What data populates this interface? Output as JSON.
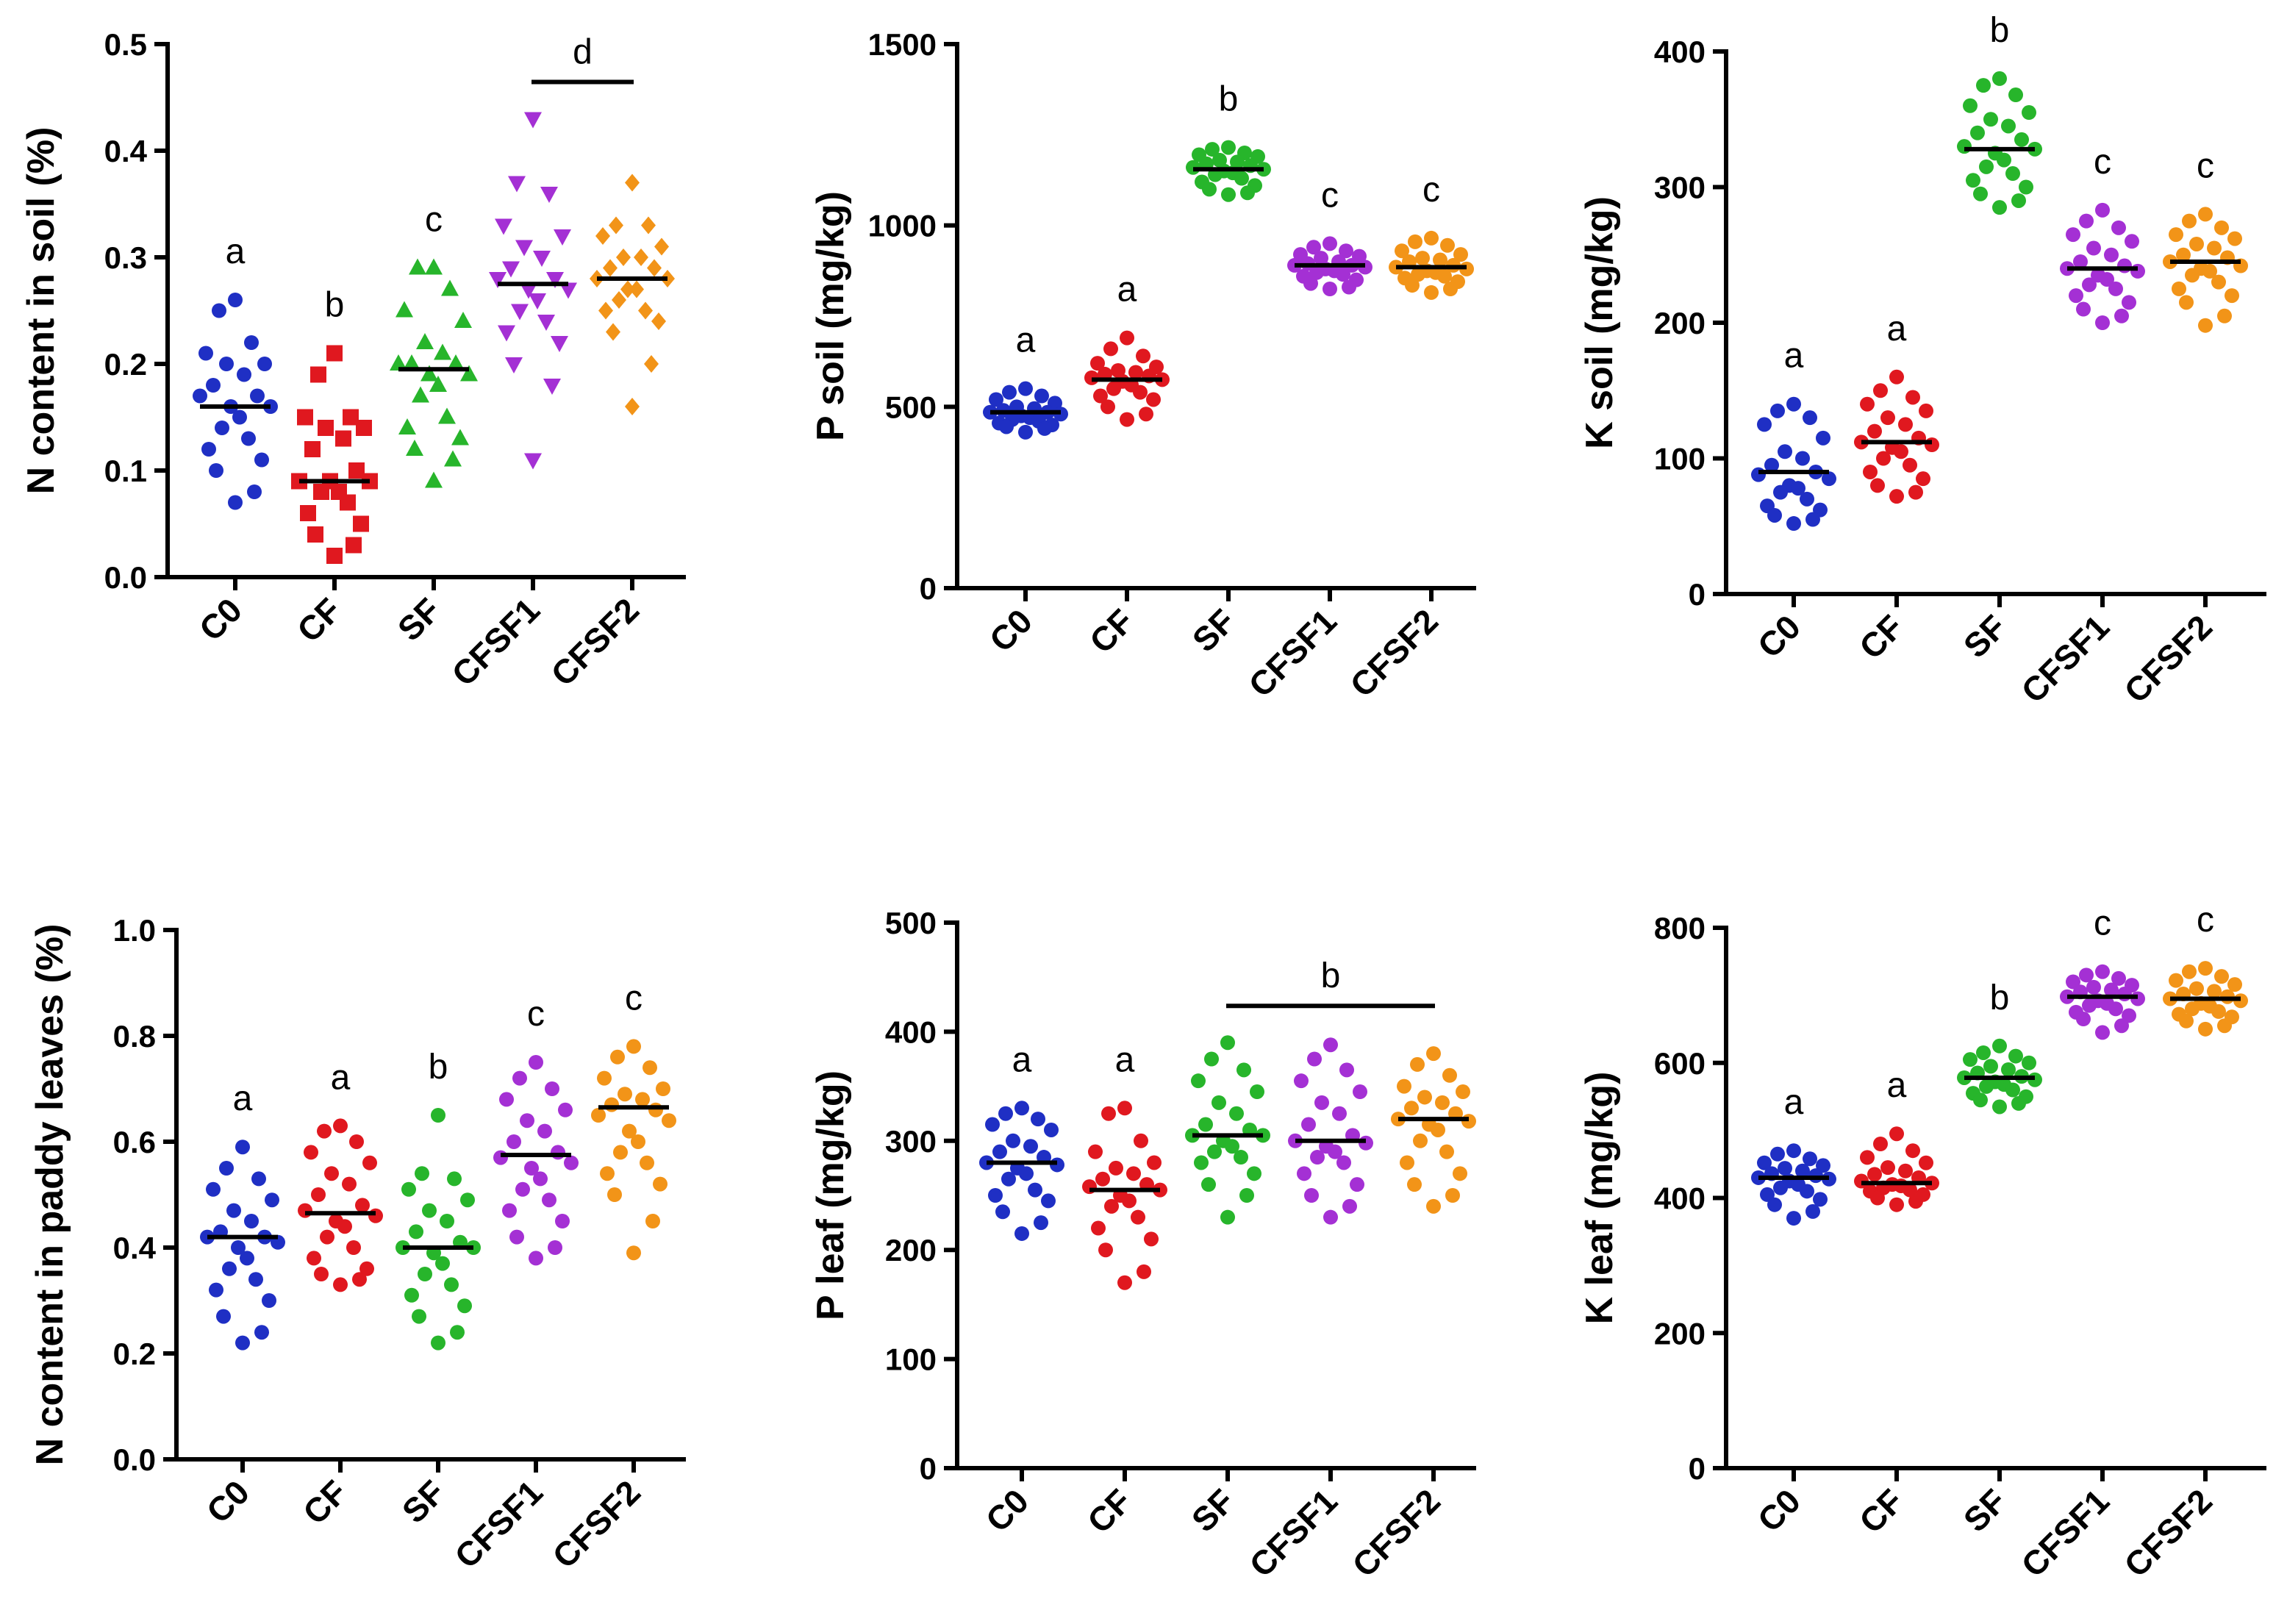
{
  "colors": {
    "C0": "#1f2fc4",
    "CF": "#e0181f",
    "SF": "#27b52b",
    "CFSF1": "#a430d4",
    "CFSF2": "#f29418"
  },
  "chart_data": [
    {
      "type": "scatter",
      "ylabel": "N content in soil (%)",
      "ylim": [
        0,
        0.5
      ],
      "yticks": [
        "0.0",
        "0.1",
        "0.2",
        "0.3",
        "0.4",
        "0.5"
      ],
      "categories": [
        "C0",
        "CF",
        "SF",
        "CFSF1",
        "CFSF2"
      ],
      "markers": [
        "circle",
        "square",
        "triangle-up",
        "triangle-down",
        "diamond"
      ],
      "medians": [
        0.16,
        0.09,
        0.195,
        0.275,
        0.28
      ],
      "letters": [
        "a",
        "b",
        "c",
        "",
        ""
      ],
      "bracket": {
        "from": "CFSF1",
        "to": "CFSF2",
        "letter": "d"
      },
      "series": [
        {
          "name": "C0",
          "values": [
            0.26,
            0.25,
            0.22,
            0.21,
            0.2,
            0.2,
            0.19,
            0.18,
            0.17,
            0.17,
            0.16,
            0.16,
            0.15,
            0.14,
            0.13,
            0.12,
            0.11,
            0.1,
            0.08,
            0.07
          ]
        },
        {
          "name": "CF",
          "values": [
            0.21,
            0.19,
            0.15,
            0.15,
            0.14,
            0.14,
            0.13,
            0.12,
            0.1,
            0.09,
            0.09,
            0.09,
            0.08,
            0.08,
            0.07,
            0.06,
            0.05,
            0.04,
            0.03,
            0.02
          ]
        },
        {
          "name": "SF",
          "values": [
            0.29,
            0.29,
            0.27,
            0.25,
            0.24,
            0.22,
            0.21,
            0.2,
            0.2,
            0.2,
            0.19,
            0.19,
            0.18,
            0.17,
            0.15,
            0.14,
            0.13,
            0.12,
            0.11,
            0.09
          ]
        },
        {
          "name": "CFSF1",
          "values": [
            0.43,
            0.37,
            0.36,
            0.33,
            0.32,
            0.31,
            0.3,
            0.29,
            0.28,
            0.28,
            0.27,
            0.27,
            0.26,
            0.25,
            0.24,
            0.23,
            0.22,
            0.2,
            0.18,
            0.11
          ]
        },
        {
          "name": "CFSF2",
          "values": [
            0.37,
            0.33,
            0.33,
            0.32,
            0.31,
            0.3,
            0.3,
            0.29,
            0.29,
            0.28,
            0.28,
            0.27,
            0.27,
            0.26,
            0.25,
            0.25,
            0.24,
            0.23,
            0.2,
            0.16
          ]
        }
      ]
    },
    {
      "type": "scatter",
      "ylabel": "P soil (mg/kg)",
      "ylim": [
        0,
        1500
      ],
      "yticks": [
        "0",
        "500",
        "1000",
        "1500"
      ],
      "categories": [
        "C0",
        "CF",
        "SF",
        "CFSF1",
        "CFSF2"
      ],
      "markers": [
        "circle",
        "circle",
        "circle",
        "circle",
        "circle"
      ],
      "medians": [
        485,
        575,
        1155,
        890,
        885
      ],
      "letters": [
        "a",
        "a",
        "b",
        "c",
        "c"
      ],
      "bracket": null,
      "series": [
        {
          "name": "C0",
          "values": [
            550,
            540,
            530,
            520,
            510,
            500,
            495,
            490,
            485,
            485,
            480,
            475,
            470,
            465,
            460,
            455,
            450,
            445,
            440,
            430
          ]
        },
        {
          "name": "CF",
          "values": [
            690,
            660,
            640,
            620,
            610,
            600,
            595,
            590,
            585,
            580,
            575,
            570,
            560,
            550,
            540,
            530,
            520,
            500,
            480,
            465
          ]
        },
        {
          "name": "SF",
          "values": [
            1215,
            1210,
            1200,
            1195,
            1190,
            1180,
            1175,
            1170,
            1165,
            1160,
            1155,
            1150,
            1145,
            1140,
            1130,
            1120,
            1110,
            1100,
            1090,
            1085
          ]
        },
        {
          "name": "CFSF1",
          "values": [
            950,
            940,
            930,
            920,
            915,
            910,
            900,
            895,
            890,
            890,
            885,
            880,
            875,
            870,
            865,
            860,
            850,
            840,
            830,
            825
          ]
        },
        {
          "name": "CFSF2",
          "values": [
            965,
            955,
            945,
            930,
            920,
            910,
            905,
            900,
            890,
            885,
            880,
            875,
            870,
            865,
            860,
            855,
            845,
            835,
            825,
            815
          ]
        }
      ]
    },
    {
      "type": "scatter",
      "ylabel": "K soil (mg/kg)",
      "ylim": [
        0,
        400
      ],
      "yticks": [
        "0",
        "100",
        "200",
        "300",
        "400"
      ],
      "categories": [
        "C0",
        "CF",
        "SF",
        "CFSF1",
        "CFSF2"
      ],
      "markers": [
        "circle",
        "circle",
        "circle",
        "circle",
        "circle"
      ],
      "medians": [
        90,
        112,
        328,
        240,
        245
      ],
      "letters": [
        "a",
        "a",
        "b",
        "c",
        "c"
      ],
      "bracket": null,
      "series": [
        {
          "name": "C0",
          "values": [
            140,
            135,
            130,
            125,
            115,
            105,
            100,
            95,
            90,
            88,
            85,
            80,
            78,
            75,
            70,
            65,
            62,
            58,
            55,
            52
          ]
        },
        {
          "name": "CF",
          "values": [
            160,
            150,
            145,
            140,
            135,
            130,
            125,
            120,
            115,
            112,
            110,
            108,
            105,
            100,
            95,
            90,
            85,
            80,
            75,
            72
          ]
        },
        {
          "name": "SF",
          "values": [
            380,
            375,
            368,
            360,
            355,
            350,
            345,
            340,
            335,
            330,
            328,
            325,
            320,
            315,
            310,
            305,
            300,
            295,
            290,
            285
          ]
        },
        {
          "name": "CFSF1",
          "values": [
            283,
            275,
            270,
            265,
            260,
            255,
            250,
            245,
            242,
            240,
            238,
            235,
            232,
            228,
            225,
            220,
            215,
            210,
            205,
            200
          ]
        },
        {
          "name": "CFSF2",
          "values": [
            280,
            275,
            270,
            265,
            262,
            258,
            255,
            250,
            248,
            245,
            242,
            240,
            238,
            235,
            230,
            225,
            220,
            215,
            205,
            198
          ]
        }
      ]
    },
    {
      "type": "scatter",
      "ylabel": "N content in paddy leaves (%)",
      "ylim": [
        0,
        1.0
      ],
      "yticks": [
        "0.0",
        "0.2",
        "0.4",
        "0.6",
        "0.8",
        "1.0"
      ],
      "categories": [
        "C0",
        "CF",
        "SF",
        "CFSF1",
        "CFSF2"
      ],
      "markers": [
        "circle",
        "circle",
        "circle",
        "circle",
        "circle"
      ],
      "medians": [
        0.42,
        0.465,
        0.4,
        0.575,
        0.665
      ],
      "letters": [
        "a",
        "a",
        "b",
        "c",
        "c"
      ],
      "bracket": null,
      "series": [
        {
          "name": "C0",
          "values": [
            0.59,
            0.55,
            0.53,
            0.51,
            0.49,
            0.47,
            0.45,
            0.43,
            0.42,
            0.42,
            0.41,
            0.4,
            0.38,
            0.36,
            0.34,
            0.32,
            0.3,
            0.27,
            0.24,
            0.22
          ]
        },
        {
          "name": "CF",
          "values": [
            0.63,
            0.62,
            0.6,
            0.58,
            0.56,
            0.54,
            0.52,
            0.5,
            0.48,
            0.47,
            0.46,
            0.45,
            0.44,
            0.42,
            0.4,
            0.38,
            0.36,
            0.35,
            0.34,
            0.33
          ]
        },
        {
          "name": "SF",
          "values": [
            0.65,
            0.54,
            0.53,
            0.51,
            0.49,
            0.47,
            0.45,
            0.43,
            0.41,
            0.4,
            0.4,
            0.39,
            0.37,
            0.35,
            0.33,
            0.31,
            0.29,
            0.27,
            0.24,
            0.22
          ]
        },
        {
          "name": "CFSF1",
          "values": [
            0.75,
            0.72,
            0.7,
            0.68,
            0.66,
            0.64,
            0.62,
            0.6,
            0.58,
            0.57,
            0.56,
            0.55,
            0.53,
            0.51,
            0.49,
            0.47,
            0.45,
            0.42,
            0.4,
            0.38
          ]
        },
        {
          "name": "CFSF2",
          "values": [
            0.78,
            0.76,
            0.74,
            0.72,
            0.7,
            0.69,
            0.68,
            0.67,
            0.66,
            0.65,
            0.64,
            0.62,
            0.6,
            0.58,
            0.56,
            0.54,
            0.52,
            0.5,
            0.45,
            0.39
          ]
        }
      ]
    },
    {
      "type": "scatter",
      "ylabel": "P leaf (mg/kg)",
      "ylim": [
        0,
        500
      ],
      "yticks": [
        "0",
        "100",
        "200",
        "300",
        "400",
        "500"
      ],
      "categories": [
        "C0",
        "CF",
        "SF",
        "CFSF1",
        "CFSF2"
      ],
      "markers": [
        "circle",
        "circle",
        "circle",
        "circle",
        "circle"
      ],
      "medians": [
        280,
        255,
        305,
        300,
        320
      ],
      "letters": [
        "a",
        "a",
        "",
        "",
        ""
      ],
      "bracket": {
        "from": "SF",
        "to": "CFSF2",
        "letter": "b"
      },
      "series": [
        {
          "name": "C0",
          "values": [
            330,
            325,
            320,
            315,
            310,
            300,
            295,
            290,
            285,
            280,
            278,
            275,
            270,
            265,
            255,
            250,
            245,
            235,
            225,
            215
          ]
        },
        {
          "name": "CF",
          "values": [
            330,
            325,
            300,
            290,
            280,
            275,
            270,
            265,
            260,
            258,
            255,
            250,
            245,
            240,
            230,
            220,
            210,
            200,
            180,
            170
          ]
        },
        {
          "name": "SF",
          "values": [
            390,
            375,
            365,
            355,
            345,
            335,
            325,
            315,
            310,
            305,
            305,
            300,
            295,
            290,
            285,
            280,
            270,
            260,
            250,
            230
          ]
        },
        {
          "name": "CFSF1",
          "values": [
            388,
            375,
            365,
            355,
            345,
            335,
            325,
            315,
            305,
            300,
            298,
            295,
            290,
            285,
            280,
            270,
            260,
            250,
            240,
            230
          ]
        },
        {
          "name": "CFSF2",
          "values": [
            380,
            370,
            360,
            350,
            345,
            340,
            335,
            330,
            325,
            320,
            318,
            315,
            310,
            300,
            290,
            280,
            270,
            260,
            250,
            240
          ]
        }
      ]
    },
    {
      "type": "scatter",
      "ylabel": "K leaf (mg/kg)",
      "ylim": [
        0,
        800
      ],
      "yticks": [
        "0",
        "200",
        "400",
        "600",
        "800"
      ],
      "categories": [
        "C0",
        "CF",
        "SF",
        "CFSF1",
        "CFSF2"
      ],
      "markers": [
        "circle",
        "circle",
        "circle",
        "circle",
        "circle"
      ],
      "medians": [
        430,
        422,
        578,
        698,
        695
      ],
      "letters": [
        "a",
        "a",
        "b",
        "c",
        "c"
      ],
      "bracket": null,
      "series": [
        {
          "name": "C0",
          "values": [
            470,
            465,
            458,
            452,
            448,
            444,
            440,
            436,
            433,
            430,
            428,
            425,
            420,
            415,
            410,
            405,
            398,
            390,
            380,
            370
          ]
        },
        {
          "name": "CF",
          "values": [
            495,
            480,
            470,
            460,
            452,
            445,
            440,
            435,
            430,
            425,
            422,
            420,
            418,
            415,
            412,
            410,
            405,
            400,
            395,
            390
          ]
        },
        {
          "name": "SF",
          "values": [
            625,
            615,
            610,
            605,
            600,
            595,
            590,
            585,
            580,
            578,
            575,
            572,
            568,
            565,
            560,
            555,
            550,
            545,
            540,
            535
          ]
        },
        {
          "name": "CFSF1",
          "values": [
            735,
            730,
            725,
            720,
            715,
            712,
            708,
            705,
            702,
            698,
            695,
            692,
            688,
            685,
            680,
            675,
            670,
            665,
            655,
            645
          ]
        },
        {
          "name": "CFSF2",
          "values": [
            740,
            735,
            728,
            722,
            716,
            710,
            706,
            702,
            698,
            695,
            692,
            688,
            684,
            680,
            676,
            672,
            668,
            662,
            655,
            650
          ]
        }
      ]
    }
  ]
}
